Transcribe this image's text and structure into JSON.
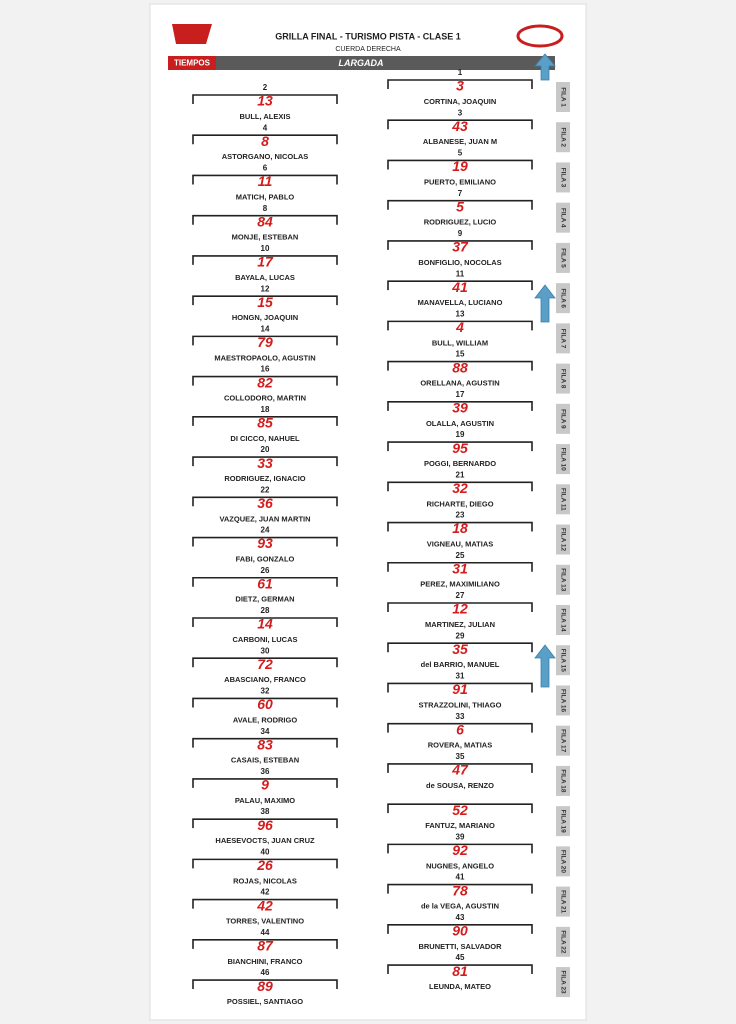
{
  "header": {
    "title": "GRILLA FINAL - TURISMO PISTA - CLASE 1",
    "subtitle": "CUERDA DERECHA",
    "banner": "LARGADA",
    "logo_text": "TIEMPOS"
  },
  "grid": {
    "right": [
      {
        "position": 1,
        "number": 3,
        "driver": "CORTINA, JOAQUIN"
      },
      {
        "position": 3,
        "number": 43,
        "driver": "ALBANESE, JUAN M"
      },
      {
        "position": 5,
        "number": 19,
        "driver": "PUERTO, EMILIANO"
      },
      {
        "position": 7,
        "number": 5,
        "driver": "RODRIGUEZ, LUCIO"
      },
      {
        "position": 9,
        "number": 37,
        "driver": "BONFIGLIO, NOCOLAS"
      },
      {
        "position": 11,
        "number": 41,
        "driver": "MANAVELLA, LUCIANO"
      },
      {
        "position": 13,
        "number": 4,
        "driver": "BULL, WILLIAM"
      },
      {
        "position": 15,
        "number": 88,
        "driver": "ORELLANA, AGUSTIN"
      },
      {
        "position": 17,
        "number": 39,
        "driver": "OLALLA, AGUSTIN"
      },
      {
        "position": 19,
        "number": 95,
        "driver": "POGGI, BERNARDO"
      },
      {
        "position": 21,
        "number": 32,
        "driver": "RICHARTE, DIEGO"
      },
      {
        "position": 23,
        "number": 18,
        "driver": "VIGNEAU, MATIAS"
      },
      {
        "position": 25,
        "number": 31,
        "driver": "PEREZ, MAXIMILIANO"
      },
      {
        "position": 27,
        "number": 12,
        "driver": "MARTINEZ, JULIAN"
      },
      {
        "position": 29,
        "number": 35,
        "driver": "del BARRIO, MANUEL"
      },
      {
        "position": 31,
        "number": 91,
        "driver": "STRAZZOLINI, THIAGO"
      },
      {
        "position": 33,
        "number": 6,
        "driver": "ROVERA, MATIAS"
      },
      {
        "position": 35,
        "number": 47,
        "driver": "de SOUSA, RENZO"
      },
      {
        "position": null,
        "number": 52,
        "driver": "FANTUZ, MARIANO"
      },
      {
        "position": 39,
        "number": 92,
        "driver": "NUGNES, ANGELO"
      },
      {
        "position": 41,
        "number": 78,
        "driver": "de la VEGA, AGUSTIN"
      },
      {
        "position": 43,
        "number": 90,
        "driver": "BRUNETTI, SALVADOR"
      },
      {
        "position": 45,
        "number": 81,
        "driver": "LEUNDA, MATEO"
      }
    ],
    "left": [
      {
        "position": 2,
        "number": 13,
        "driver": "BULL, ALEXIS"
      },
      {
        "position": 4,
        "number": 8,
        "driver": "ASTORGANO, NICOLAS"
      },
      {
        "position": 6,
        "number": 11,
        "driver": "MATICH, PABLO"
      },
      {
        "position": 8,
        "number": 84,
        "driver": "MONJE, ESTEBAN"
      },
      {
        "position": 10,
        "number": 17,
        "driver": "BAYALA, LUCAS"
      },
      {
        "position": 12,
        "number": 15,
        "driver": "HONGN, JOAQUIN"
      },
      {
        "position": 14,
        "number": 79,
        "driver": "MAESTROPAOLO, AGUSTIN"
      },
      {
        "position": 16,
        "number": 82,
        "driver": "COLLODORO, MARTIN"
      },
      {
        "position": 18,
        "number": 85,
        "driver": "DI CICCO, NAHUEL"
      },
      {
        "position": 20,
        "number": 33,
        "driver": "RODRIGUEZ, IGNACIO"
      },
      {
        "position": 22,
        "number": 36,
        "driver": "VAZQUEZ, JUAN MARTIN"
      },
      {
        "position": 24,
        "number": 93,
        "driver": "FABI, GONZALO"
      },
      {
        "position": 26,
        "number": 61,
        "driver": "DIETZ, GERMAN"
      },
      {
        "position": 28,
        "number": 14,
        "driver": "CARBONI, LUCAS"
      },
      {
        "position": 30,
        "number": 72,
        "driver": "ABASCIANO, FRANCO"
      },
      {
        "position": 32,
        "number": 60,
        "driver": "AVALE, RODRIGO"
      },
      {
        "position": 34,
        "number": 83,
        "driver": "CASAIS, ESTEBAN"
      },
      {
        "position": 36,
        "number": 9,
        "driver": "PALAU, MAXIMO"
      },
      {
        "position": 38,
        "number": 96,
        "driver": "HAESEVOCTS, JUAN CRUZ"
      },
      {
        "position": 40,
        "number": 26,
        "driver": "ROJAS, NICOLAS"
      },
      {
        "position": 42,
        "number": 42,
        "driver": "TORRES, VALENTINO"
      },
      {
        "position": 44,
        "number": 87,
        "driver": "BIANCHINI, FRANCO"
      },
      {
        "position": 46,
        "number": 89,
        "driver": "POSSIEL, SANTIAGO"
      }
    ]
  },
  "fila_labels": [
    "FILA 1",
    "FILA 2",
    "FILA 3",
    "FILA 4",
    "FILA 5",
    "FILA 6",
    "FILA 7",
    "FILA 8",
    "FILA 9",
    "FILA 10",
    "FILA 11",
    "FILA 12",
    "FILA 13",
    "FILA 14",
    "FILA 15",
    "FILA 16",
    "FILA 17",
    "FILA 18",
    "FILA 19",
    "FILA 20",
    "FILA 21",
    "FILA 22",
    "FILA 23"
  ]
}
